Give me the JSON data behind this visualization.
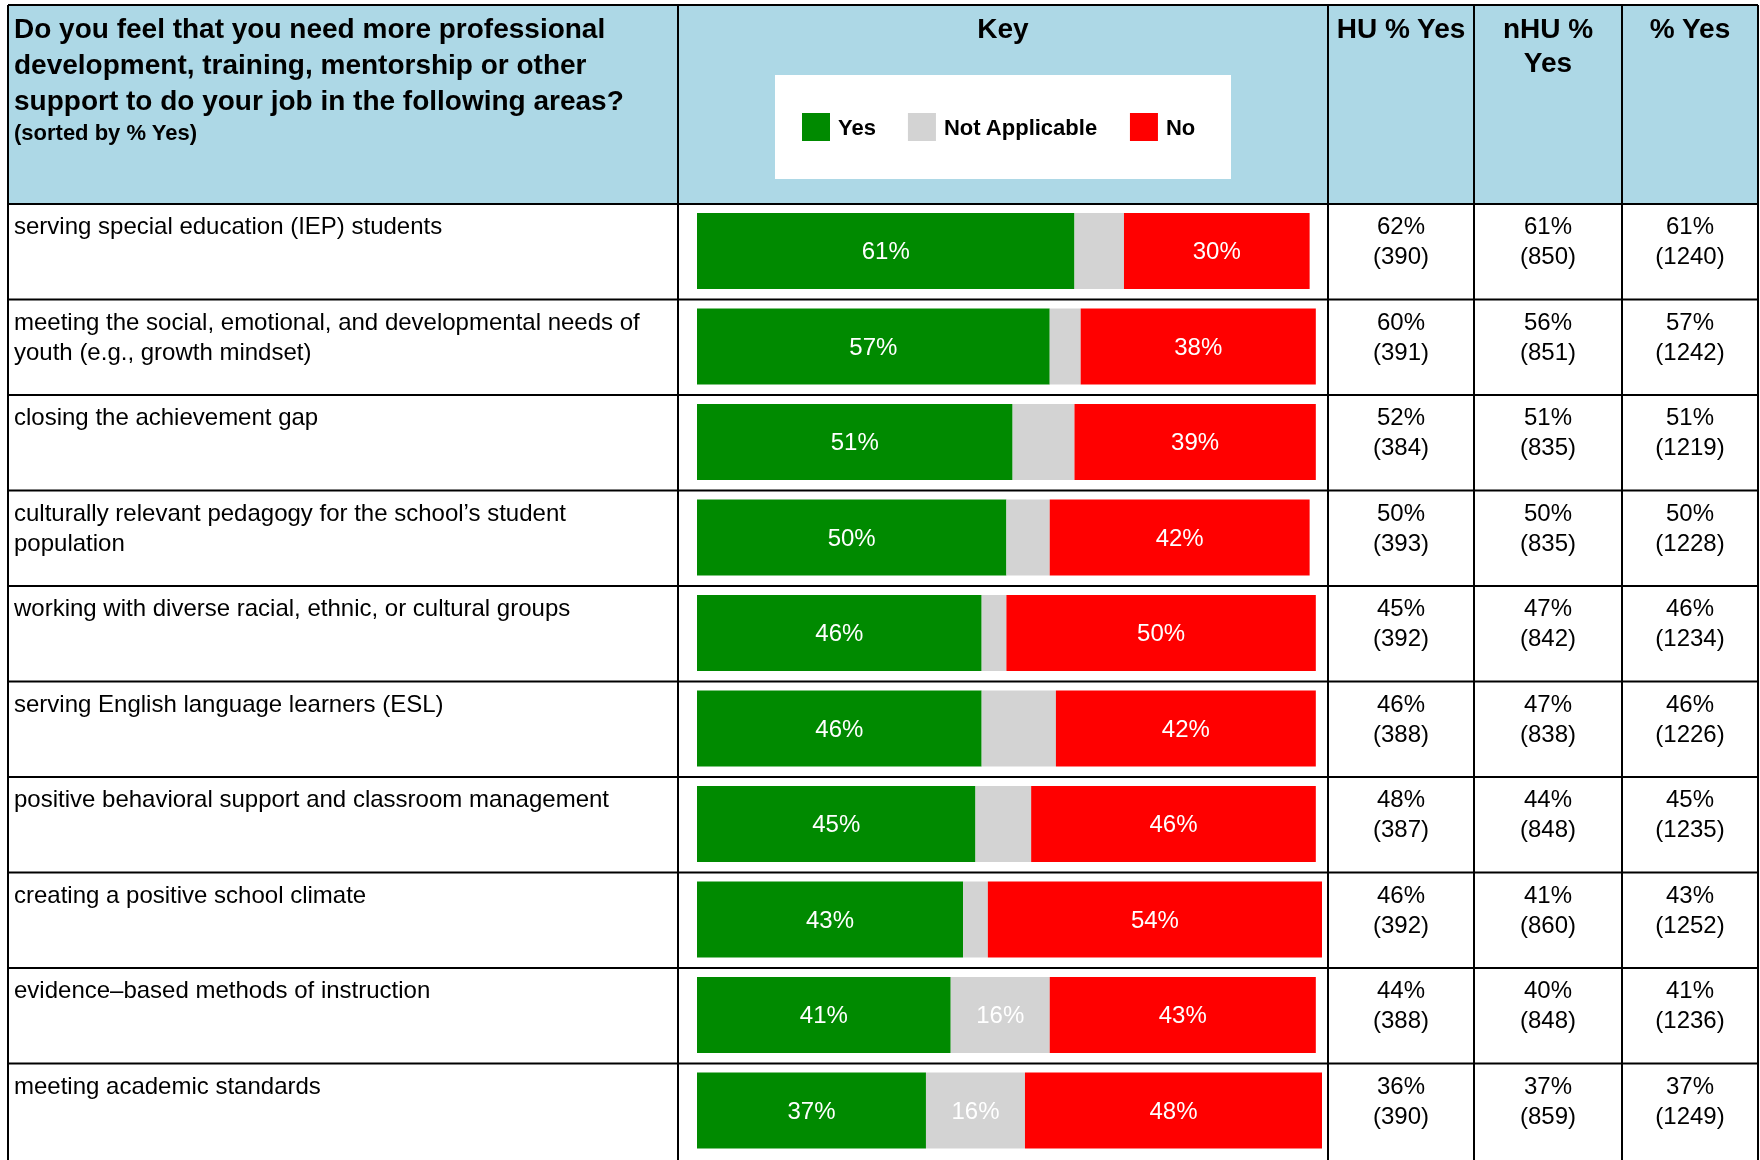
{
  "chart_data": {
    "type": "bar",
    "orientation": "horizontal",
    "stacked": true,
    "title": "Do you feel that you need more professional development, training, mentorship or other support to do your job in the following areas?",
    "subtitle": "(sorted by % Yes)",
    "legend_title": "Key",
    "legend": "top",
    "categories": [
      "serving special education (IEP) students",
      "meeting the social, emotional, and developmental needs of youth (e.g., growth mindset)",
      "closing the achievement gap",
      "culturally relevant pedagogy for the school’s student population",
      "working with diverse racial, ethnic, or cultural groups",
      "serving English language learners (ESL)",
      "positive behavioral support and classroom management",
      "creating a positive school climate",
      "evidence–based methods of instruction",
      "meeting academic standards"
    ],
    "series": [
      {
        "name": "Yes",
        "color": "#008a00",
        "values": [
          61,
          57,
          51,
          50,
          46,
          46,
          45,
          43,
          41,
          37
        ],
        "value_labels": [
          "61%",
          "57%",
          "51%",
          "50%",
          "46%",
          "46%",
          "45%",
          "43%",
          "41%",
          "37%"
        ]
      },
      {
        "name": "Not Applicable",
        "color": "#d3d3d3",
        "values": [
          8,
          5,
          10,
          7,
          4,
          12,
          9,
          4,
          16,
          16
        ],
        "value_labels": [
          null,
          null,
          null,
          null,
          null,
          null,
          null,
          null,
          "16%",
          "16%"
        ]
      },
      {
        "name": "No",
        "color": "#ff0000",
        "values": [
          30,
          38,
          39,
          42,
          50,
          42,
          46,
          54,
          43,
          48
        ],
        "value_labels": [
          "30%",
          "38%",
          "39%",
          "42%",
          "50%",
          "42%",
          "46%",
          "54%",
          "43%",
          "48%"
        ]
      }
    ],
    "annotations": [
      "HU % Yes",
      "nHU % Yes",
      "% Yes",
      "62% (390)",
      "61% (850)",
      "61% (1240)",
      "60% (391)",
      "56% (851)",
      "57% (1242)",
      "52% (384)",
      "51% (835)",
      "51% (1219)",
      "50% (393)",
      "50% (835)",
      "50% (1228)",
      "45% (392)",
      "47% (842)",
      "46% (1234)",
      "46% (388)",
      "47% (838)",
      "46% (1226)",
      "48% (387)",
      "44% (848)",
      "45% (1235)",
      "46% (392)",
      "41% (860)",
      "43% (1252)",
      "44% (388)",
      "40% (848)",
      "41% (1236)",
      "36% (390)",
      "37% (859)",
      "37% (1249)"
    ]
  }
}
